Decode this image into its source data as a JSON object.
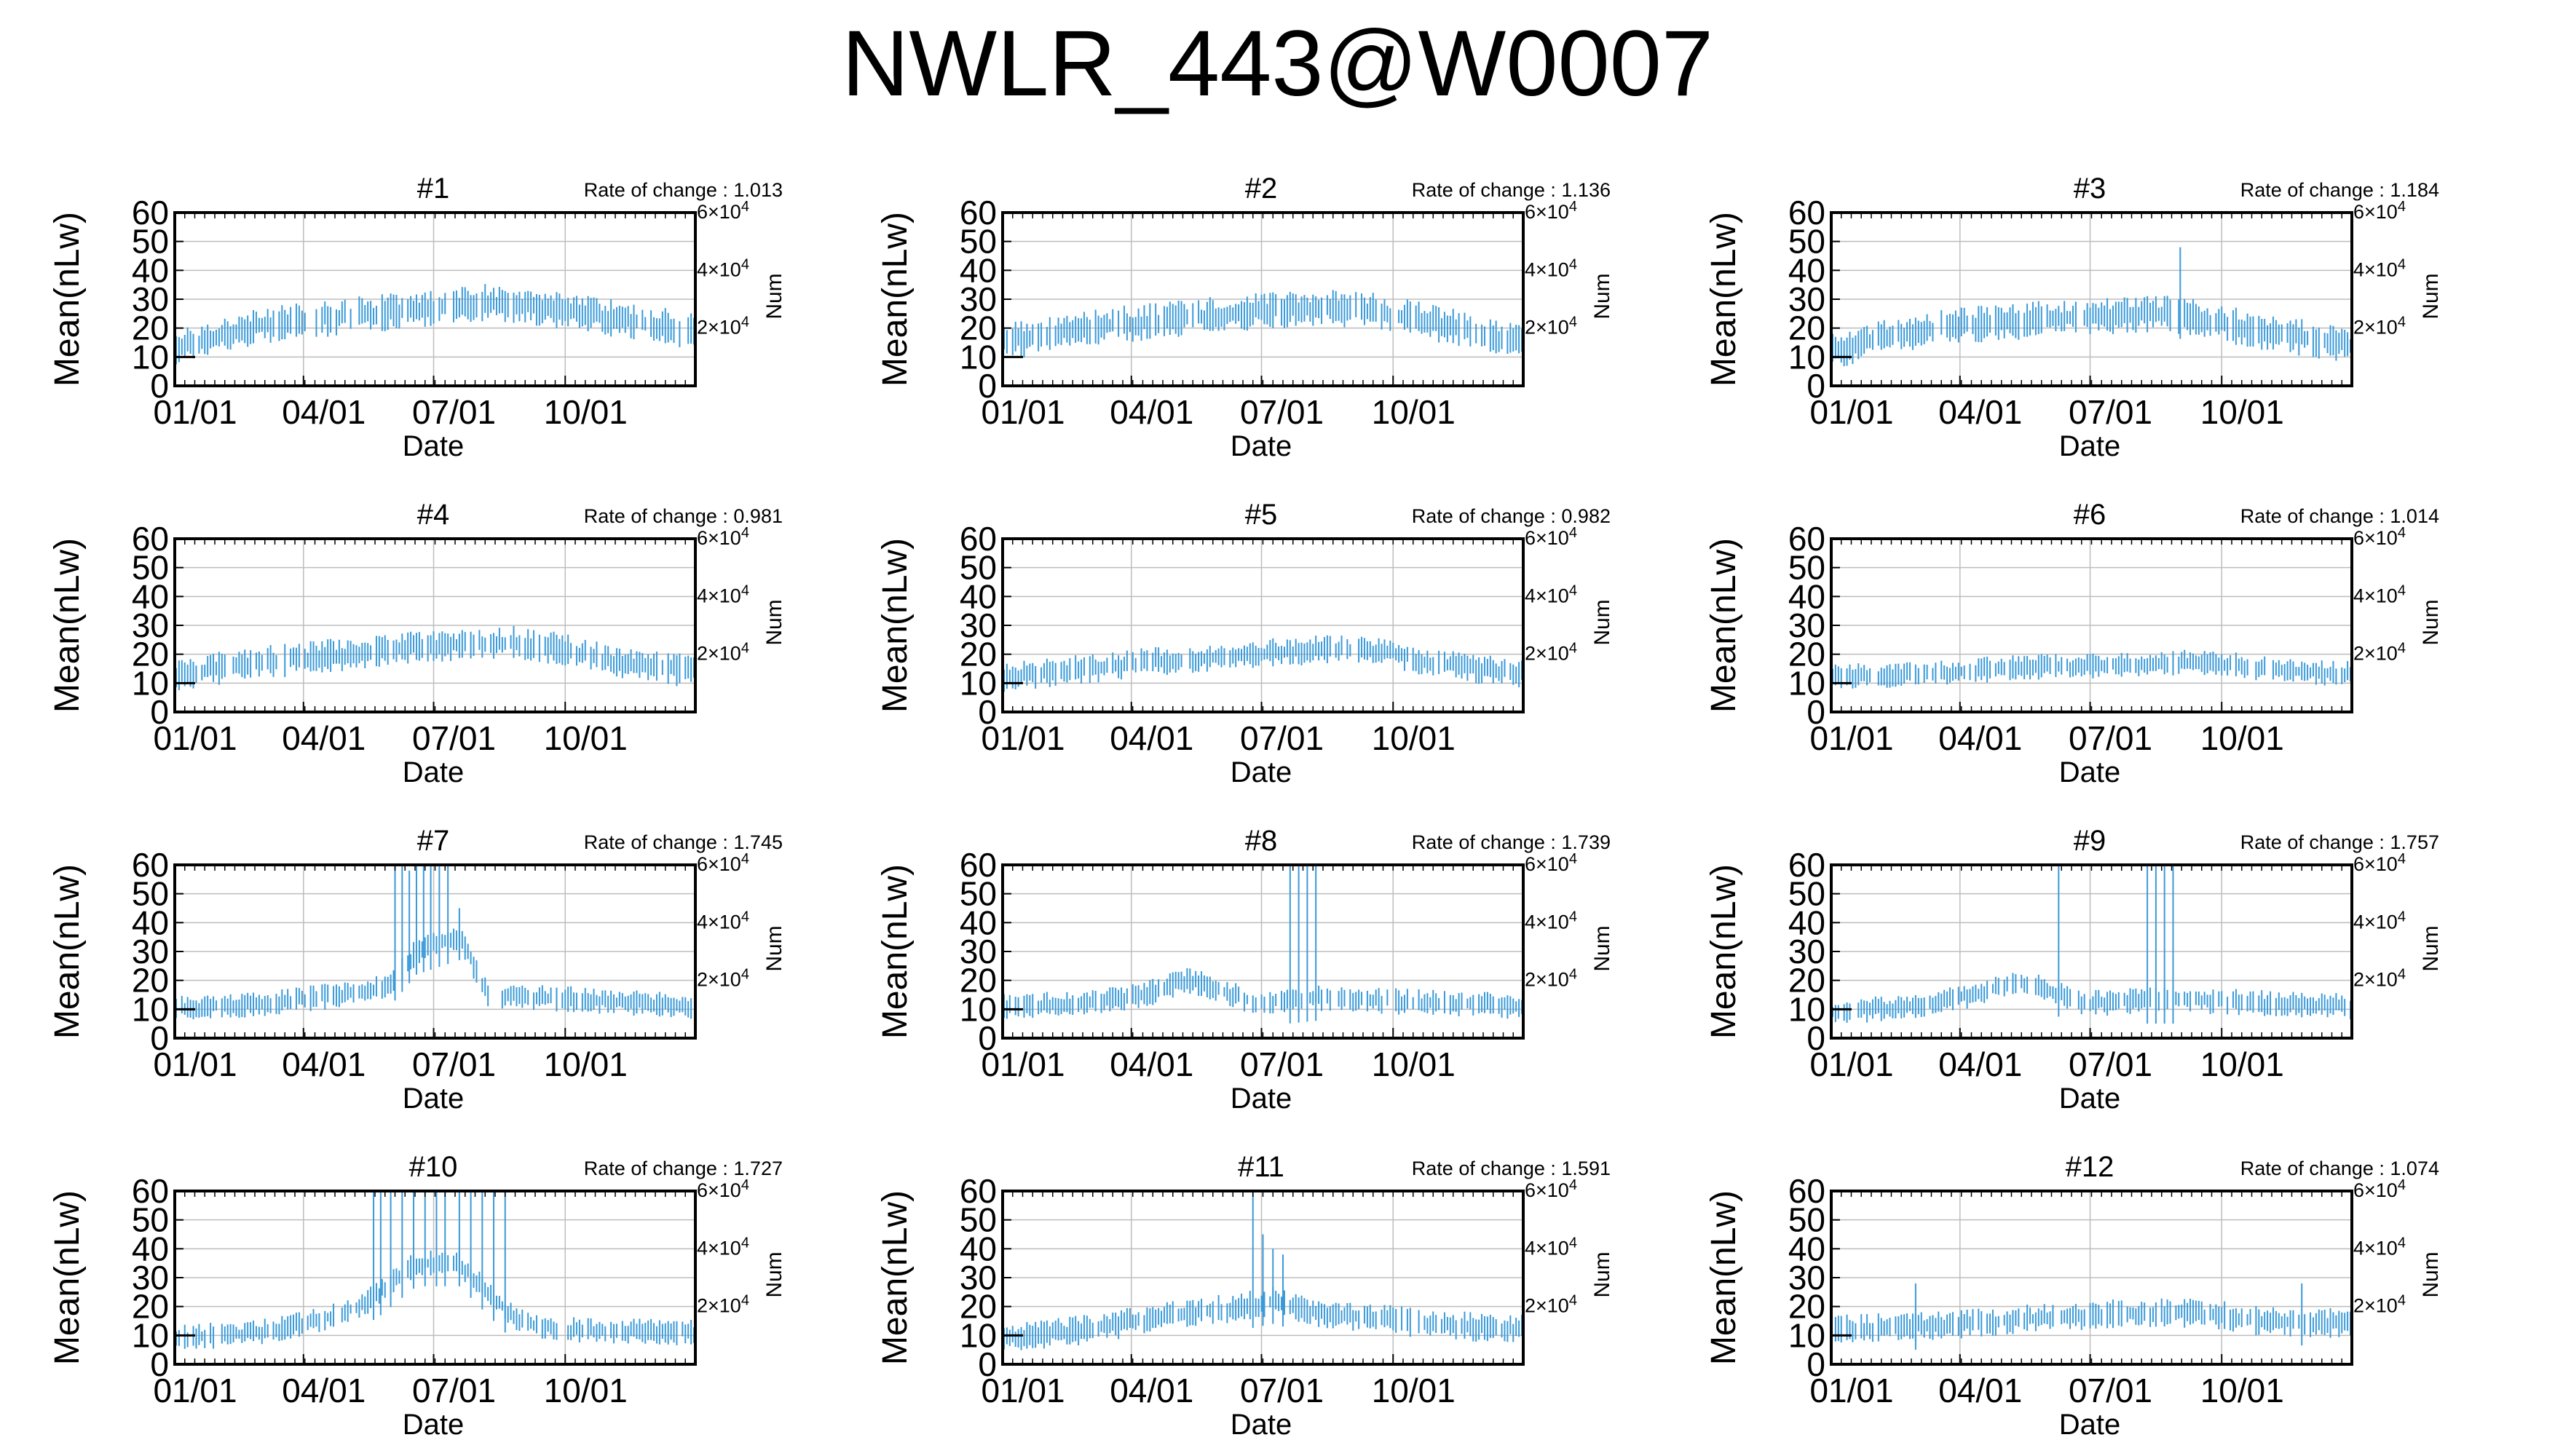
{
  "title": "NWLR_443@W0007",
  "colors": {
    "data": "#3a9ad9",
    "grid": "#bdbdbd",
    "frame": "#000000"
  },
  "chart_common": {
    "type": "bar",
    "x_axis_label": "Date",
    "y_axis_label": "Mean(nLw)",
    "y_ticks": [
      "0",
      "10",
      "20",
      "30",
      "40",
      "50",
      "60"
    ],
    "ylim": [
      0,
      60
    ],
    "x_tick_labels": [
      "01/01",
      "04/01",
      "07/01",
      "10/01"
    ],
    "x_range_days": [
      1,
      365
    ],
    "secondary_axis_label": "Num",
    "secondary_ticks": [
      {
        "mantissa": "2",
        "exp": "4",
        "value": 20000
      },
      {
        "mantissa": "4",
        "exp": "4",
        "value": 40000
      },
      {
        "mantissa": "6",
        "exp": "4",
        "value": 60000
      }
    ],
    "secondary_lim": [
      0,
      60000
    ],
    "grid": true,
    "rate_prefix": "Rate of change : "
  },
  "chart_data": [
    {
      "panel": "#1",
      "rate": "1.013",
      "profile": [
        [
          1,
          13
        ],
        [
          60,
          21
        ],
        [
          120,
          24
        ],
        [
          180,
          27
        ],
        [
          220,
          29
        ],
        [
          260,
          27
        ],
        [
          300,
          24
        ],
        [
          365,
          19
        ]
      ],
      "spread": 5,
      "spikes": []
    },
    {
      "panel": "#2",
      "rate": "1.136",
      "profile": [
        [
          1,
          15
        ],
        [
          60,
          20
        ],
        [
          120,
          23
        ],
        [
          180,
          26
        ],
        [
          220,
          27
        ],
        [
          260,
          26
        ],
        [
          300,
          22
        ],
        [
          365,
          15
        ]
      ],
      "spread": 5,
      "spikes": []
    },
    {
      "panel": "#3",
      "rate": "1.184",
      "profile": [
        [
          1,
          12
        ],
        [
          60,
          19
        ],
        [
          120,
          22
        ],
        [
          180,
          24
        ],
        [
          230,
          25
        ],
        [
          250,
          24
        ],
        [
          300,
          19
        ],
        [
          365,
          14
        ]
      ],
      "spread": 5,
      "spikes": [
        [
          245,
          48
        ]
      ]
    },
    {
      "panel": "#4",
      "rate": "0.981",
      "profile": [
        [
          1,
          13
        ],
        [
          60,
          17
        ],
        [
          120,
          20
        ],
        [
          180,
          23
        ],
        [
          240,
          24
        ],
        [
          270,
          22
        ],
        [
          300,
          18
        ],
        [
          365,
          14
        ]
      ],
      "spread": 4.5,
      "spikes": []
    },
    {
      "panel": "#5",
      "rate": "0.982",
      "profile": [
        [
          1,
          12
        ],
        [
          60,
          15
        ],
        [
          120,
          18
        ],
        [
          180,
          20
        ],
        [
          230,
          22
        ],
        [
          270,
          21
        ],
        [
          300,
          17
        ],
        [
          365,
          13
        ]
      ],
      "spread": 4,
      "spikes": []
    },
    {
      "panel": "#6",
      "rate": "1.014",
      "profile": [
        [
          1,
          12
        ],
        [
          60,
          13
        ],
        [
          120,
          15
        ],
        [
          180,
          16
        ],
        [
          230,
          17
        ],
        [
          270,
          17
        ],
        [
          300,
          15
        ],
        [
          365,
          13
        ]
      ],
      "spread": 3.5,
      "spikes": []
    },
    {
      "panel": "#7",
      "rate": "1.745",
      "profile": [
        [
          1,
          10
        ],
        [
          60,
          12
        ],
        [
          120,
          15
        ],
        [
          150,
          18
        ],
        [
          170,
          30
        ],
        [
          200,
          35
        ],
        [
          220,
          15
        ],
        [
          260,
          14
        ],
        [
          365,
          11
        ]
      ],
      "spread": 3.5,
      "spikes": [
        [
          155,
          60
        ],
        [
          160,
          60
        ],
        [
          165,
          58
        ],
        [
          170,
          60
        ],
        [
          175,
          60
        ],
        [
          180,
          60
        ],
        [
          186,
          60
        ],
        [
          192,
          60
        ],
        [
          200,
          45
        ]
      ]
    },
    {
      "panel": "#8",
      "rate": "1.739",
      "profile": [
        [
          1,
          11
        ],
        [
          60,
          12
        ],
        [
          100,
          15
        ],
        [
          130,
          20
        ],
        [
          145,
          18
        ],
        [
          180,
          12
        ],
        [
          220,
          14
        ],
        [
          260,
          13
        ],
        [
          365,
          11
        ]
      ],
      "spread": 3.5,
      "spikes": [
        [
          202,
          60
        ],
        [
          208,
          60
        ],
        [
          214,
          60
        ],
        [
          220,
          60
        ]
      ]
    },
    {
      "panel": "#9",
      "rate": "1.757",
      "profile": [
        [
          1,
          9
        ],
        [
          60,
          11
        ],
        [
          100,
          15
        ],
        [
          130,
          20
        ],
        [
          145,
          18
        ],
        [
          180,
          12
        ],
        [
          220,
          13
        ],
        [
          260,
          13
        ],
        [
          365,
          11
        ]
      ],
      "spread": 3.5,
      "spikes": [
        [
          160,
          60
        ],
        [
          222,
          60
        ],
        [
          228,
          60
        ],
        [
          234,
          60
        ],
        [
          240,
          60
        ]
      ]
    },
    {
      "panel": "#10",
      "rate": "1.727",
      "profile": [
        [
          1,
          9
        ],
        [
          60,
          11
        ],
        [
          100,
          15
        ],
        [
          130,
          20
        ],
        [
          145,
          25
        ],
        [
          170,
          35
        ],
        [
          200,
          35
        ],
        [
          240,
          15
        ],
        [
          270,
          12
        ],
        [
          365,
          11
        ]
      ],
      "spread": 3.5,
      "spikes": [
        [
          140,
          60
        ],
        [
          145,
          60
        ],
        [
          152,
          60
        ],
        [
          160,
          60
        ],
        [
          168,
          60
        ],
        [
          176,
          60
        ],
        [
          184,
          60
        ],
        [
          190,
          60
        ],
        [
          200,
          60
        ],
        [
          208,
          60
        ],
        [
          216,
          60
        ],
        [
          224,
          60
        ],
        [
          232,
          60
        ]
      ]
    },
    {
      "panel": "#11",
      "rate": "1.591",
      "profile": [
        [
          1,
          9
        ],
        [
          60,
          12
        ],
        [
          120,
          17
        ],
        [
          170,
          20
        ],
        [
          190,
          22
        ],
        [
          220,
          18
        ],
        [
          260,
          16
        ],
        [
          300,
          14
        ],
        [
          365,
          12
        ]
      ],
      "spread": 4,
      "spikes": [
        [
          176,
          60
        ],
        [
          183,
          45
        ],
        [
          190,
          40
        ],
        [
          197,
          38
        ]
      ]
    },
    {
      "panel": "#12",
      "rate": "1.074",
      "profile": [
        [
          1,
          12
        ],
        [
          60,
          13
        ],
        [
          120,
          15
        ],
        [
          180,
          17
        ],
        [
          240,
          18
        ],
        [
          270,
          17
        ],
        [
          300,
          15
        ],
        [
          365,
          14
        ]
      ],
      "spread": 4,
      "spikes": [
        [
          60,
          28
        ],
        [
          330,
          28
        ]
      ]
    }
  ]
}
